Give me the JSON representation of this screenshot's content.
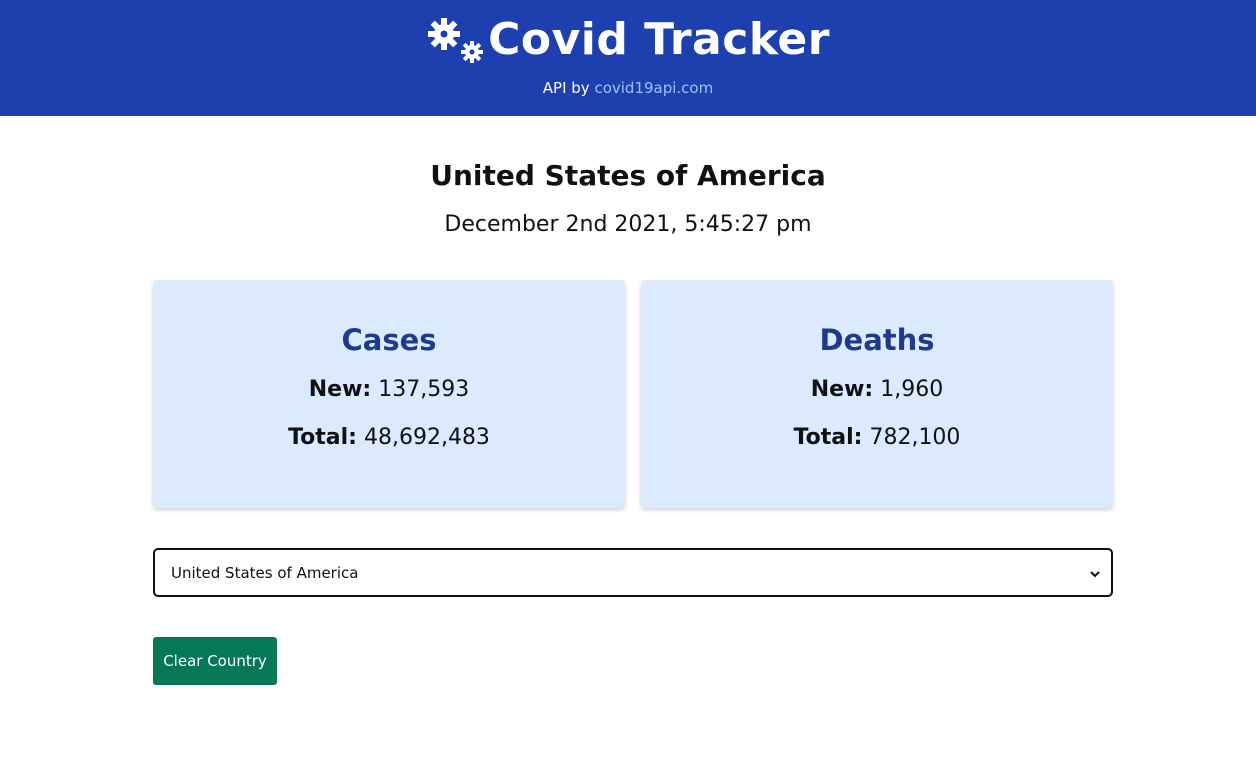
{
  "header": {
    "brand_icon": "virus-gears-icon",
    "title": "Covid Tracker",
    "api_prefix": "API by",
    "api_link": "covid19api.com"
  },
  "summary": {
    "country": "United States of America",
    "updated": "December 2nd 2021, 5:45:27 pm"
  },
  "cards": {
    "cases": {
      "title": "Cases",
      "new_label": "New:",
      "new_value": "137,593",
      "total_label": "Total:",
      "total_value": "48,692,483"
    },
    "deaths": {
      "title": "Deaths",
      "new_label": "New:",
      "new_value": "1,960",
      "total_label": "Total:",
      "total_value": "782,100"
    }
  },
  "country_select": {
    "selected": "United States of America"
  },
  "actions": {
    "clear_label": "Clear Country"
  },
  "colors": {
    "header_bg": "#1e40af",
    "card_bg": "#dbeafe",
    "card_title": "#1e3a8a",
    "link": "#93c5fd",
    "button_bg": "#047857"
  }
}
